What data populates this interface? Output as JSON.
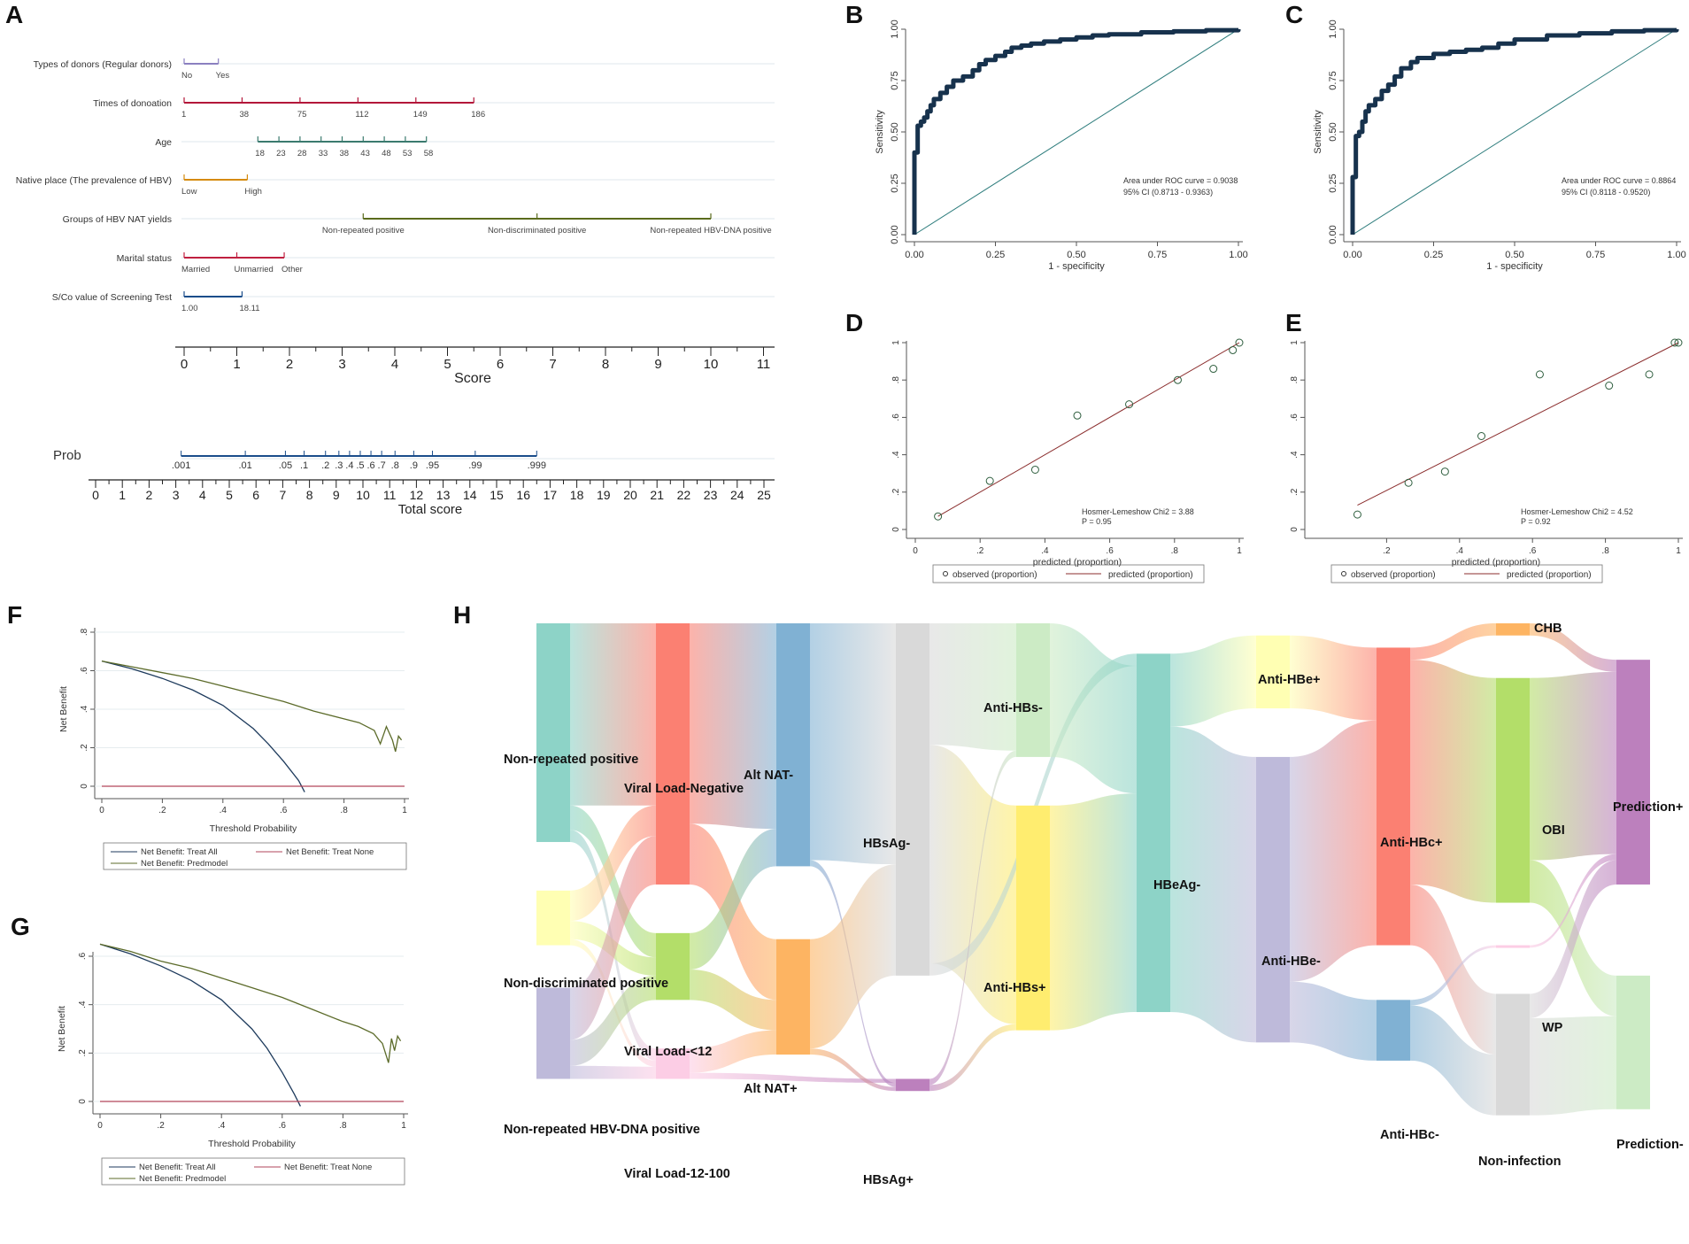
{
  "panel_letters": [
    "A",
    "B",
    "C",
    "D",
    "E",
    "F",
    "G",
    "H"
  ],
  "colors": {
    "roc": "#17324d",
    "diag": "#2e7d7d",
    "calib_line": "#8b2e2e",
    "calib_point": "#2e5e3e",
    "dca_all": "#1d3a5c",
    "dca_model": "#5c6b2a",
    "dca_none": "#b2465b"
  },
  "chart_data": [
    {
      "panel": "A",
      "type": "nomogram",
      "variables": [
        {
          "label": "Types of donors (Regular donors)",
          "color": "#8b80c0",
          "points": [
            0,
            0.65
          ],
          "ticks": [
            "No",
            "Yes"
          ]
        },
        {
          "label": "Times of donoation",
          "color": "#b3173a",
          "points": [
            0,
            1.1,
            2.2,
            3.3,
            4.4,
            5.5
          ],
          "ticks": [
            "1",
            "38",
            "75",
            "112",
            "149",
            "186"
          ]
        },
        {
          "label": "Age",
          "color": "#3b7a6e",
          "points": [
            1.4,
            1.8,
            2.2,
            2.6,
            3.0,
            3.4,
            3.8,
            4.2,
            4.6
          ],
          "ticks": [
            "18",
            "23",
            "28",
            "33",
            "38",
            "43",
            "48",
            "53",
            "58"
          ]
        },
        {
          "label": "Native place (The prevalence of HBV)",
          "color": "#d58a0c",
          "points": [
            0,
            1.2
          ],
          "ticks": [
            "Low",
            "High"
          ]
        },
        {
          "label": "Groups of HBV NAT yields",
          "color": "#5a6b1c",
          "points": [
            3.4,
            6.7,
            10.0
          ],
          "ticks": [
            "Non-repeated positive",
            "Non-discriminated positive",
            "Non-repeated HBV-DNA positive"
          ]
        },
        {
          "label": "Marital status",
          "color": "#c02040",
          "points": [
            0,
            1.0,
            1.9
          ],
          "ticks": [
            "Married",
            "Unmarried",
            "Other"
          ]
        },
        {
          "label": "S/Co value of Screening Test",
          "color": "#1a4d8a",
          "points": [
            0,
            1.1
          ],
          "ticks": [
            "1.00",
            "18.11"
          ]
        }
      ],
      "score_axis": {
        "label": "Score",
        "ticks": [
          "0",
          "1",
          "2",
          "3",
          "4",
          "5",
          "6",
          "7",
          "8",
          "9",
          "10",
          "11"
        ]
      },
      "prob": {
        "label": "Prob",
        "values": [
          0.001,
          0.01,
          0.05,
          0.1,
          0.2,
          0.3,
          0.4,
          0.5,
          0.6,
          0.7,
          0.8,
          0.9,
          0.95,
          0.99,
          0.999
        ],
        "tick_labels": [
          ".001",
          ".01",
          ".05",
          ".1",
          ".2",
          ".3",
          ".4",
          ".5",
          ".6",
          ".7",
          ".8",
          ".9",
          ".95",
          ".99",
          ".999"
        ],
        "total_points": [
          3.2,
          5.6,
          7.1,
          7.8,
          8.6,
          9.1,
          9.5,
          9.9,
          10.3,
          10.7,
          11.2,
          11.9,
          12.6,
          14.2,
          16.5
        ]
      },
      "total_axis": {
        "label": "Total score",
        "ticks": [
          "0",
          "1",
          "2",
          "3",
          "4",
          "5",
          "6",
          "7",
          "8",
          "9",
          "10",
          "11",
          "12",
          "13",
          "14",
          "15",
          "16",
          "17",
          "18",
          "19",
          "20",
          "21",
          "22",
          "23",
          "24",
          "25"
        ]
      }
    },
    {
      "panel": "B",
      "type": "line",
      "xlabel": "1 - specificity",
      "ylabel": "Sensitivity",
      "xticks": [
        "0.00",
        "0.25",
        "0.50",
        "0.75",
        "1.00"
      ],
      "yticks": [
        "0.00",
        "0.25",
        "0.50",
        "0.75",
        "1.00"
      ],
      "x": [
        0,
        0,
        0.01,
        0.01,
        0.02,
        0.03,
        0.04,
        0.05,
        0.06,
        0.08,
        0.1,
        0.12,
        0.15,
        0.18,
        0.2,
        0.22,
        0.25,
        0.28,
        0.3,
        0.33,
        0.36,
        0.4,
        0.45,
        0.5,
        0.55,
        0.6,
        0.7,
        0.8,
        0.9,
        1.0
      ],
      "y": [
        0,
        0.4,
        0.4,
        0.53,
        0.55,
        0.57,
        0.6,
        0.63,
        0.66,
        0.69,
        0.72,
        0.75,
        0.77,
        0.8,
        0.83,
        0.85,
        0.87,
        0.89,
        0.91,
        0.92,
        0.93,
        0.94,
        0.95,
        0.96,
        0.97,
        0.975,
        0.985,
        0.99,
        0.995,
        1.0
      ],
      "annotation": [
        "Area under ROC curve = 0.9038",
        "95% CI (0.8713 - 0.9363)"
      ]
    },
    {
      "panel": "C",
      "type": "line",
      "xlabel": "1 - specificity",
      "ylabel": "Sensitivity",
      "xticks": [
        "0.00",
        "0.25",
        "0.50",
        "0.75",
        "1.00"
      ],
      "yticks": [
        "0.00",
        "0.25",
        "0.50",
        "0.75",
        "1.00"
      ],
      "x": [
        0,
        0,
        0.01,
        0.01,
        0.02,
        0.03,
        0.04,
        0.05,
        0.07,
        0.09,
        0.11,
        0.13,
        0.15,
        0.18,
        0.2,
        0.25,
        0.3,
        0.35,
        0.4,
        0.45,
        0.5,
        0.6,
        0.7,
        0.8,
        0.9,
        1.0
      ],
      "y": [
        0,
        0.28,
        0.3,
        0.48,
        0.5,
        0.55,
        0.6,
        0.63,
        0.66,
        0.7,
        0.73,
        0.77,
        0.81,
        0.84,
        0.86,
        0.88,
        0.89,
        0.9,
        0.91,
        0.93,
        0.95,
        0.97,
        0.98,
        0.99,
        0.995,
        1.0
      ],
      "annotation": [
        "Area under ROC curve = 0.8864",
        "95% CI (0.8118 - 0.9520)"
      ]
    },
    {
      "panel": "D",
      "type": "scatter",
      "xlabel": "predicted (proportion)",
      "xticks": [
        "0",
        ".2",
        ".4",
        ".6",
        ".8",
        "1"
      ],
      "yticks": [
        "0",
        ".2",
        ".4",
        ".6",
        ".8",
        "1"
      ],
      "points": [
        [
          0.07,
          0.07
        ],
        [
          0.23,
          0.26
        ],
        [
          0.37,
          0.32
        ],
        [
          0.5,
          0.61
        ],
        [
          0.66,
          0.67
        ],
        [
          0.81,
          0.8
        ],
        [
          0.92,
          0.86
        ],
        [
          0.98,
          0.96
        ],
        [
          1.0,
          1.0
        ]
      ],
      "line": [
        [
          0.07,
          0.07
        ],
        [
          1.0,
          1.0
        ]
      ],
      "annotation": [
        "Hosmer-Lemeshow Chi2 = 3.88",
        "P = 0.95"
      ],
      "legend": [
        "observed (proportion)",
        "predicted (proportion)"
      ]
    },
    {
      "panel": "E",
      "type": "scatter",
      "xlabel": "predicted (proportion)",
      "xticks": [
        ".2",
        ".4",
        ".6",
        ".8",
        "1"
      ],
      "yticks": [
        "0",
        ".2",
        ".4",
        ".6",
        ".8",
        "1"
      ],
      "points": [
        [
          0.12,
          0.08
        ],
        [
          0.26,
          0.25
        ],
        [
          0.36,
          0.31
        ],
        [
          0.46,
          0.5
        ],
        [
          0.62,
          0.83
        ],
        [
          0.81,
          0.77
        ],
        [
          0.92,
          0.83
        ],
        [
          0.99,
          1.0
        ],
        [
          1.0,
          1.0
        ]
      ],
      "line": [
        [
          0.12,
          0.13
        ],
        [
          1.0,
          1.0
        ]
      ],
      "annotation": [
        "Hosmer-Lemeshow Chi2 = 4.52",
        "P = 0.92"
      ],
      "legend": [
        "observed (proportion)",
        "predicted (proportion)"
      ]
    },
    {
      "panel": "F",
      "type": "line",
      "xlabel": "Threshold Probability",
      "ylabel": "Net Benefit",
      "xticks": [
        "0",
        ".2",
        ".4",
        ".6",
        ".8",
        "1"
      ],
      "yticks": [
        "0",
        ".2",
        ".4",
        ".6",
        ".8"
      ],
      "series": [
        {
          "name": "Net Benefit: Treat All",
          "x": [
            0,
            0.1,
            0.2,
            0.3,
            0.4,
            0.5,
            0.55,
            0.6,
            0.65,
            0.67
          ],
          "y": [
            0.65,
            0.61,
            0.56,
            0.5,
            0.42,
            0.3,
            0.22,
            0.13,
            0.03,
            -0.03
          ]
        },
        {
          "name": "Net Benefit: Treat None",
          "x": [
            0,
            1.0
          ],
          "y": [
            0,
            0
          ]
        },
        {
          "name": "Net Benefit: Predmodel",
          "x": [
            0,
            0.1,
            0.2,
            0.3,
            0.4,
            0.5,
            0.6,
            0.7,
            0.8,
            0.85,
            0.9,
            0.92,
            0.94,
            0.96,
            0.97,
            0.98,
            0.99
          ],
          "y": [
            0.65,
            0.62,
            0.59,
            0.56,
            0.52,
            0.48,
            0.44,
            0.39,
            0.35,
            0.33,
            0.29,
            0.22,
            0.31,
            0.24,
            0.18,
            0.26,
            0.24
          ]
        }
      ],
      "legend": [
        "Net Benefit: Treat All",
        "Net Benefit: Treat None",
        "Net Benefit: Predmodel"
      ]
    },
    {
      "panel": "G",
      "type": "line",
      "xlabel": "Threshold Probability",
      "ylabel": "Net Benefit",
      "xticks": [
        "0",
        ".2",
        ".4",
        ".6",
        ".8",
        "1"
      ],
      "yticks": [
        "0",
        ".2",
        ".4",
        ".6"
      ],
      "series": [
        {
          "name": "Net Benefit: Treat All",
          "x": [
            0,
            0.1,
            0.2,
            0.3,
            0.4,
            0.5,
            0.55,
            0.6,
            0.64,
            0.66
          ],
          "y": [
            0.65,
            0.61,
            0.56,
            0.5,
            0.42,
            0.3,
            0.22,
            0.12,
            0.03,
            -0.02
          ]
        },
        {
          "name": "Net Benefit: Treat None",
          "x": [
            0,
            1.0
          ],
          "y": [
            0,
            0
          ]
        },
        {
          "name": "Net Benefit: Predmodel",
          "x": [
            0,
            0.1,
            0.2,
            0.3,
            0.4,
            0.5,
            0.6,
            0.7,
            0.8,
            0.85,
            0.9,
            0.93,
            0.95,
            0.96,
            0.97,
            0.98,
            0.99
          ],
          "y": [
            0.65,
            0.62,
            0.58,
            0.55,
            0.51,
            0.47,
            0.43,
            0.38,
            0.33,
            0.31,
            0.28,
            0.24,
            0.16,
            0.26,
            0.21,
            0.27,
            0.25
          ]
        }
      ],
      "legend": [
        "Net Benefit: Treat All",
        "Net Benefit: Treat None",
        "Net Benefit: Predmodel"
      ]
    },
    {
      "panel": "H",
      "type": "sankey",
      "nodes": [
        {
          "label": "Non-repeated positive",
          "col": 0,
          "color": "#8dd3c7",
          "y0": 0.0,
          "y1": 0.36
        },
        {
          "label": "Non-discriminated positive",
          "col": 0,
          "color": "#ffffb3",
          "y0": 0.44,
          "y1": 0.53
        },
        {
          "label": "Non-repeated HBV-DNA positive",
          "col": 0,
          "color": "#bebada",
          "y0": 0.6,
          "y1": 0.75
        },
        {
          "label": "Viral Load-Negative",
          "col": 1,
          "color": "#fb8072",
          "y0": 0.0,
          "y1": 0.43
        },
        {
          "label": "Viral Load-<12",
          "col": 1,
          "color": "#b3de69",
          "y0": 0.51,
          "y1": 0.62
        },
        {
          "label": "Viral Load-12-100",
          "col": 1,
          "color": "#fccde5",
          "y0": 0.7,
          "y1": 0.75
        },
        {
          "label": "Alt NAT-",
          "col": 2,
          "color": "#80b1d3",
          "y0": 0.0,
          "y1": 0.4
        },
        {
          "label": "Alt NAT+",
          "col": 2,
          "color": "#fdb462",
          "y0": 0.52,
          "y1": 0.71
        },
        {
          "label": "HBsAg-",
          "col": 3,
          "color": "#d9d9d9",
          "y0": 0.0,
          "y1": 0.58
        },
        {
          "label": "HBsAg+",
          "col": 3,
          "color": "#bc80bd",
          "y0": 0.75,
          "y1": 0.77
        },
        {
          "label": "Anti-HBs-",
          "col": 4,
          "color": "#ccebc5",
          "y0": 0.0,
          "y1": 0.22
        },
        {
          "label": "Anti-HBs+",
          "col": 4,
          "color": "#ffed6f",
          "y0": 0.3,
          "y1": 0.67
        },
        {
          "label": "HBeAg-",
          "col": 5,
          "color": "#8dd3c7",
          "y0": 0.05,
          "y1": 0.64
        },
        {
          "label": "Anti-HBe+",
          "col": 6,
          "color": "#ffffb3",
          "y0": 0.02,
          "y1": 0.14
        },
        {
          "label": "Anti-HBe-",
          "col": 6,
          "color": "#bebada",
          "y0": 0.22,
          "y1": 0.69
        },
        {
          "label": "Anti-HBc+",
          "col": 7,
          "color": "#fb8072",
          "y0": 0.04,
          "y1": 0.53
        },
        {
          "label": "Anti-HBc-",
          "col": 7,
          "color": "#80b1d3",
          "y0": 0.62,
          "y1": 0.72
        },
        {
          "label": "CHB",
          "col": 8,
          "color": "#fdb462",
          "y0": 0.0,
          "y1": 0.02
        },
        {
          "label": "OBI",
          "col": 8,
          "color": "#b3de69",
          "y0": 0.09,
          "y1": 0.46
        },
        {
          "label": "WP",
          "col": 8,
          "color": "#fccde5",
          "y0": 0.53,
          "y1": 0.534
        },
        {
          "label": "Non-infection",
          "col": 8,
          "color": "#d9d9d9",
          "y0": 0.61,
          "y1": 0.81
        },
        {
          "label": "Prediction+",
          "col": 9,
          "color": "#bc80bd",
          "y0": 0.06,
          "y1": 0.43
        },
        {
          "label": "Prediction-",
          "col": 9,
          "color": "#ccebc5",
          "y0": 0.58,
          "y1": 0.8
        }
      ],
      "links": [
        [
          "Non-repeated positive",
          "Viral Load-Negative",
          0.3
        ],
        [
          "Non-repeated positive",
          "Viral Load-<12",
          0.04
        ],
        [
          "Non-repeated positive",
          "Viral Load-12-100",
          0.02
        ],
        [
          "Non-discriminated positive",
          "Viral Load-Negative",
          0.05
        ],
        [
          "Non-discriminated positive",
          "Viral Load-<12",
          0.03
        ],
        [
          "Non-discriminated positive",
          "Viral Load-12-100",
          0.01
        ],
        [
          "Non-repeated HBV-DNA positive",
          "Viral Load-Negative",
          0.08
        ],
        [
          "Non-repeated HBV-DNA positive",
          "Viral Load-<12",
          0.04
        ],
        [
          "Non-repeated HBV-DNA positive",
          "Viral Load-12-100",
          0.02
        ],
        [
          "Viral Load-Negative",
          "Alt NAT-",
          0.33
        ],
        [
          "Viral Load-Negative",
          "Alt NAT+",
          0.1
        ],
        [
          "Viral Load-<12",
          "Alt NAT-",
          0.06
        ],
        [
          "Viral Load-<12",
          "Alt NAT+",
          0.05
        ],
        [
          "Viral Load-12-100",
          "Alt NAT+",
          0.04
        ],
        [
          "Viral Load-12-100",
          "HBsAg+",
          0.01
        ],
        [
          "Alt NAT-",
          "HBsAg-",
          0.39
        ],
        [
          "Alt NAT-",
          "HBsAg+",
          0.01
        ],
        [
          "Alt NAT+",
          "HBsAg-",
          0.18
        ],
        [
          "Alt NAT+",
          "HBsAg+",
          0.01
        ],
        [
          "HBsAg-",
          "Anti-HBs-",
          0.2
        ],
        [
          "HBsAg-",
          "Anti-HBs+",
          0.36
        ],
        [
          "HBsAg-",
          "HBeAg-",
          0.02
        ],
        [
          "HBsAg+",
          "Anti-HBs-",
          0.01
        ],
        [
          "HBsAg+",
          "Anti-HBs+",
          0.01
        ],
        [
          "Anti-HBs-",
          "HBeAg-",
          0.21
        ],
        [
          "Anti-HBs+",
          "HBeAg-",
          0.36
        ],
        [
          "HBeAg-",
          "Anti-HBe+",
          0.12
        ],
        [
          "HBeAg-",
          "Anti-HBe-",
          0.47
        ],
        [
          "Anti-HBe+",
          "Anti-HBc+",
          0.12
        ],
        [
          "Anti-HBe-",
          "Anti-HBc+",
          0.37
        ],
        [
          "Anti-HBe-",
          "Anti-HBc-",
          0.1
        ],
        [
          "Anti-HBc+",
          "CHB",
          0.02
        ],
        [
          "Anti-HBc+",
          "OBI",
          0.37
        ],
        [
          "Anti-HBc+",
          "Non-infection",
          0.1
        ],
        [
          "Anti-HBc-",
          "WP",
          0.01
        ],
        [
          "Anti-HBc-",
          "Non-infection",
          0.1
        ],
        [
          "CHB",
          "Prediction+",
          0.02
        ],
        [
          "OBI",
          "Prediction+",
          0.3
        ],
        [
          "OBI",
          "Prediction-",
          0.07
        ],
        [
          "WP",
          "Prediction+",
          0.01
        ],
        [
          "Non-infection",
          "Prediction+",
          0.04
        ],
        [
          "Non-infection",
          "Prediction-",
          0.16
        ]
      ]
    }
  ]
}
